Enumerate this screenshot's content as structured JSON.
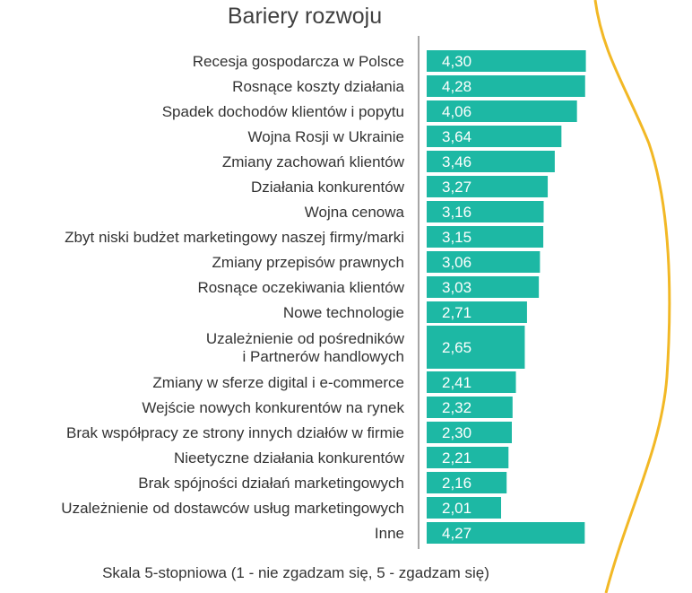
{
  "chart_data": {
    "type": "bar",
    "orientation": "horizontal",
    "title": "Bariery rozwoju",
    "footnote": "Skala 5-stopniowa (1 - nie zgadzam się, 5 - zgadzam się)",
    "xlim": [
      0,
      5
    ],
    "grid": false,
    "legend": "none",
    "bar_color": "#1db8a4",
    "accent_curve_color": "#f2b825",
    "categories": [
      "Recesja gospodarcza w Polsce",
      "Rosnące koszty działania",
      "Spadek dochodów klientów i popytu",
      "Wojna Rosji w Ukrainie",
      "Zmiany zachowań klientów",
      "Działania konkurentów",
      "Wojna cenowa",
      "Zbyt niski budżet marketingowy naszej firmy/marki",
      "Zmiany przepisów prawnych",
      "Rosnące oczekiwania klientów",
      "Nowe technologie",
      "Uzależnienie od pośredników\ni Partnerów handlowych",
      "Zmiany w sferze digital i e-commerce",
      "Wejście nowych konkurentów na rynek",
      "Brak współpracy ze strony innych działów w firmie",
      "Nieetyczne działania konkurentów",
      "Brak spójności działań marketingowych",
      "Uzależnienie od dostawców usług marketingowych",
      "Inne"
    ],
    "values": [
      4.3,
      4.28,
      4.06,
      3.64,
      3.46,
      3.27,
      3.16,
      3.15,
      3.06,
      3.03,
      2.71,
      2.65,
      2.41,
      2.32,
      2.3,
      2.21,
      2.16,
      2.01,
      4.27
    ],
    "value_labels": [
      "4,30",
      "4,28",
      "4,06",
      "3,64",
      "3,46",
      "3,27",
      "3,16",
      "3,15",
      "3,06",
      "3,03",
      "2,71",
      "2,65",
      "2,41",
      "2,32",
      "2,30",
      "2,21",
      "2,16",
      "2,01",
      "4,27"
    ]
  }
}
